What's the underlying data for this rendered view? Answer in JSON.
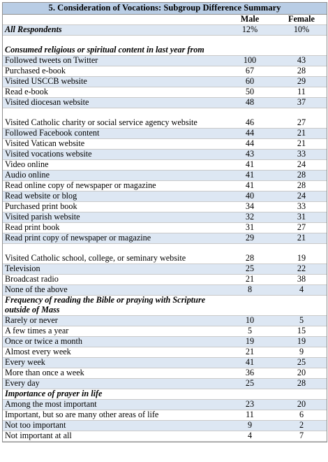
{
  "title": "5. Consideration of Vocations: Subgroup Difference Summary",
  "columns": [
    "Male",
    "Female"
  ],
  "rows": [
    {
      "kind": "all",
      "label": "All Respondents",
      "male": "12%",
      "female": "10%",
      "h": 15
    },
    {
      "kind": "section",
      "label": "Consumed religious or spiritual content in last year from",
      "male": "",
      "female": "",
      "h": 29
    },
    {
      "kind": "item",
      "label": "Followed tweets on Twitter",
      "male": "100",
      "female": "43",
      "h": 15
    },
    {
      "kind": "item",
      "label": "Purchased e-book",
      "male": "67",
      "female": "28",
      "h": 15
    },
    {
      "kind": "item",
      "label": "Visited USCCB website",
      "male": "60",
      "female": "29",
      "h": 15
    },
    {
      "kind": "item",
      "label": "Read e-book",
      "male": "50",
      "female": "11",
      "h": 15
    },
    {
      "kind": "item",
      "label": "Visited diocesan website",
      "male": "48",
      "female": "37",
      "h": 15
    },
    {
      "kind": "item2",
      "label": "Visited Catholic charity or social service agency website",
      "male": "46",
      "female": "27",
      "h": 29
    },
    {
      "kind": "item",
      "label": "Followed Facebook content",
      "male": "44",
      "female": "21",
      "h": 15
    },
    {
      "kind": "item",
      "label": "Visited Vatican website",
      "male": "44",
      "female": "21",
      "h": 15
    },
    {
      "kind": "item",
      "label": "Visited vocations website",
      "male": "43",
      "female": "33",
      "h": 15
    },
    {
      "kind": "item",
      "label": "Video online",
      "male": "41",
      "female": "24",
      "h": 15
    },
    {
      "kind": "item",
      "label": "Audio online",
      "male": "41",
      "female": "28",
      "h": 15
    },
    {
      "kind": "item",
      "label": "Read online copy of newspaper or magazine",
      "male": "41",
      "female": "28",
      "h": 15
    },
    {
      "kind": "item",
      "label": "Read website or blog",
      "male": "40",
      "female": "24",
      "h": 15
    },
    {
      "kind": "item",
      "label": "Purchased print book",
      "male": "34",
      "female": "33",
      "h": 15
    },
    {
      "kind": "item",
      "label": "Visited parish website",
      "male": "32",
      "female": "31",
      "h": 15
    },
    {
      "kind": "item",
      "label": "Read print book",
      "male": "31",
      "female": "27",
      "h": 15
    },
    {
      "kind": "item",
      "label": "Read print copy of newspaper or magazine",
      "male": "29",
      "female": "21",
      "h": 15
    },
    {
      "kind": "item2",
      "label": "Visited Catholic school, college, or seminary website",
      "male": "28",
      "female": "19",
      "h": 29
    },
    {
      "kind": "item",
      "label": "Television",
      "male": "25",
      "female": "22",
      "h": 15
    },
    {
      "kind": "item",
      "label": "Broadcast radio",
      "male": "21",
      "female": "38",
      "h": 15
    },
    {
      "kind": "item",
      "label": "None of the above",
      "male": "8",
      "female": "4",
      "h": 15
    },
    {
      "kind": "section",
      "label": "Frequency of reading the Bible or praying with Scripture outside of Mass",
      "male": "",
      "female": "",
      "h": 29
    },
    {
      "kind": "item",
      "label": "Rarely or never",
      "male": "10",
      "female": "5",
      "h": 15
    },
    {
      "kind": "item",
      "label": "A few times a year",
      "male": "5",
      "female": "15",
      "h": 15
    },
    {
      "kind": "item",
      "label": "Once or twice a month",
      "male": "19",
      "female": "19",
      "h": 15
    },
    {
      "kind": "item",
      "label": "Almost every week",
      "male": "21",
      "female": "9",
      "h": 15
    },
    {
      "kind": "item",
      "label": "Every week",
      "male": "41",
      "female": "25",
      "h": 15
    },
    {
      "kind": "item",
      "label": "More than once a week",
      "male": "36",
      "female": "20",
      "h": 15
    },
    {
      "kind": "item",
      "label": "Every day",
      "male": "25",
      "female": "28",
      "h": 15
    },
    {
      "kind": "section",
      "label": "Importance of prayer in life",
      "male": "",
      "female": "",
      "h": 15
    },
    {
      "kind": "item",
      "label": "Among the most important",
      "male": "23",
      "female": "20",
      "h": 15
    },
    {
      "kind": "item",
      "label": "Important, but so are many other areas of life",
      "male": "11",
      "female": "6",
      "h": 15
    },
    {
      "kind": "item",
      "label": "Not too important",
      "male": "9",
      "female": "2",
      "h": 15
    },
    {
      "kind": "item",
      "label": "Not important at all",
      "male": "4",
      "female": "7",
      "h": 15
    }
  ]
}
